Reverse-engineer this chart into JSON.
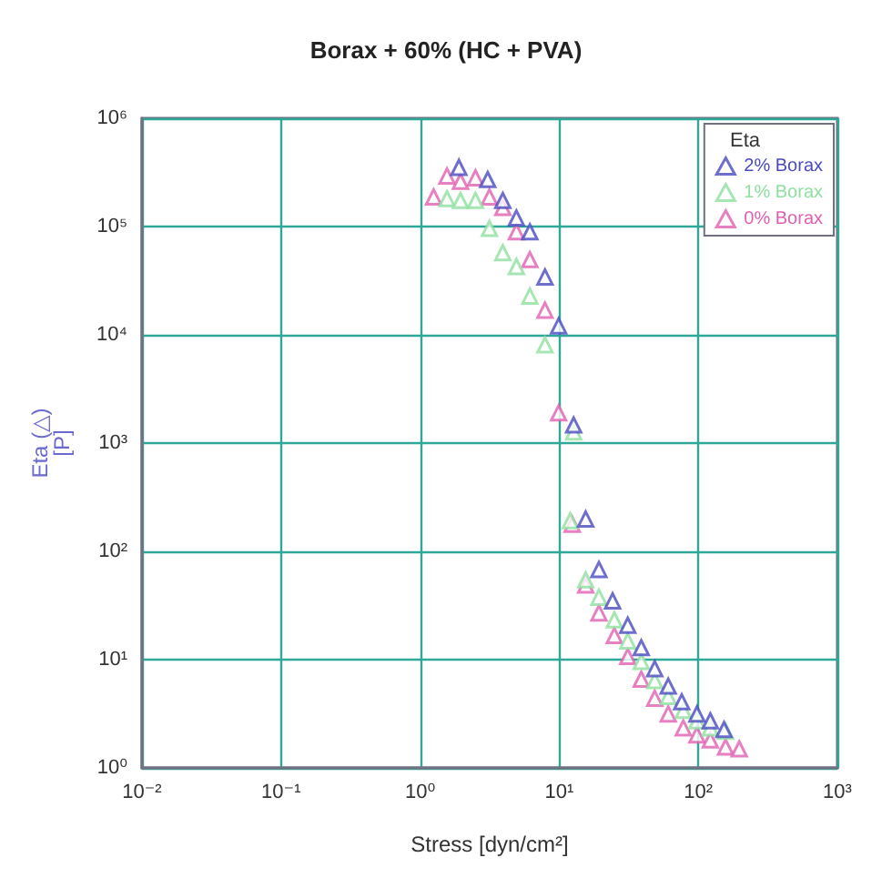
{
  "chart_data": {
    "type": "scatter",
    "title": "Borax + 60% (HC + PVA)",
    "xlabel": "Stress [dyn/cm²]",
    "ylabel": "Eta (△)\n[P]",
    "legend_title": "Eta",
    "log": "xy",
    "grid": true,
    "legend": "top right",
    "marker": "triangle",
    "xlim": [
      0.01,
      1000
    ],
    "ylim": [
      1,
      1000000
    ],
    "xticks": [
      {
        "value": 0.01,
        "label": "10⁻²"
      },
      {
        "value": 0.1,
        "label": "10⁻¹"
      },
      {
        "value": 1,
        "label": "10⁰"
      },
      {
        "value": 10,
        "label": "10¹"
      },
      {
        "value": 100,
        "label": "10²"
      },
      {
        "value": 1000,
        "label": "10³"
      }
    ],
    "yticks": [
      {
        "value": 1,
        "label": "10⁰"
      },
      {
        "value": 10,
        "label": "10¹"
      },
      {
        "value": 100,
        "label": "10²"
      },
      {
        "value": 1000,
        "label": "10³"
      },
      {
        "value": 10000,
        "label": "10⁴"
      },
      {
        "value": 100000,
        "label": "10⁵"
      },
      {
        "value": 1000000,
        "label": "10⁶"
      }
    ],
    "series": [
      {
        "name": "2% Borax",
        "color": "#4a4ac0",
        "x": [
          1.9,
          3.06,
          3.93,
          4.92,
          6.15,
          7.9,
          9.9,
          12.7,
          15.5,
          19.3,
          24.2,
          31.1,
          38.9,
          48.6,
          60.8,
          76,
          97.8,
          122,
          153
        ],
        "values": [
          352000,
          272000,
          174000,
          120000,
          89500,
          34200,
          12100,
          1470,
          199,
          68,
          34.9,
          20.8,
          12.9,
          8.25,
          5.7,
          4.08,
          3.15,
          2.72,
          2.26
        ]
      },
      {
        "name": "1% Borax",
        "color": "#90e0a0",
        "x": [
          1.56,
          1.95,
          2.5,
          3.15,
          3.93,
          4.92,
          6.15,
          7.9,
          12.7,
          12,
          15.5,
          19.3,
          24.9,
          31.1,
          38.9,
          48.6,
          60.8,
          78,
          97.8,
          122,
          157
        ],
        "values": [
          181000,
          174000,
          174000,
          96000,
          57400,
          42700,
          22800,
          8070,
          1270,
          192,
          54.5,
          37.7,
          23.3,
          14.9,
          9.6,
          6.4,
          4.56,
          3.4,
          2.72,
          2.34,
          2.18
        ]
      },
      {
        "name": "0% Borax",
        "color": "#e060b0",
        "x": [
          1.25,
          1.56,
          1.95,
          2.5,
          3.15,
          3.93,
          4.92,
          6.15,
          7.9,
          9.9,
          12.4,
          15.5,
          19.3,
          24.9,
          31.1,
          38.9,
          48.6,
          60.8,
          78,
          97.8,
          122,
          157,
          197
        ],
        "values": [
          188000,
          293000,
          262000,
          282000,
          188000,
          150000,
          89500,
          49500,
          16900,
          1900,
          178,
          48.8,
          27,
          16.7,
          10.7,
          6.6,
          4.4,
          3.15,
          2.34,
          2.02,
          1.81,
          1.56,
          1.5
        ]
      }
    ]
  }
}
